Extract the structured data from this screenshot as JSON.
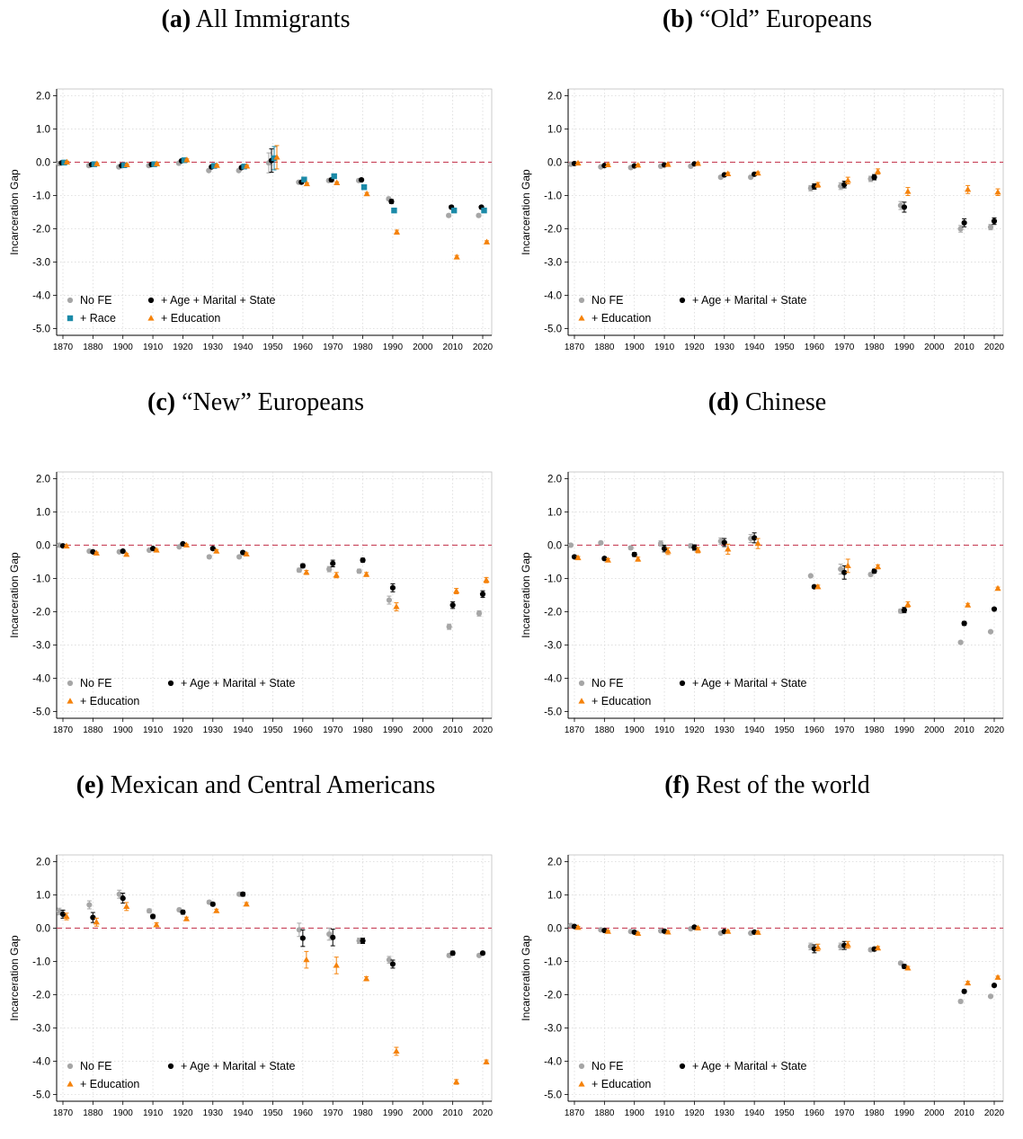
{
  "colors": {
    "nofe": "#a6a6a6",
    "fe": "#000000",
    "race": "#1b8aa8",
    "edu": "#f5820a",
    "zero_line": "#c8435a",
    "grid": "#d9d9d9"
  },
  "chart_data": [
    {
      "type": "scatter",
      "letter": "(a)",
      "title": "All Immigrants",
      "ylabel": "Incarceration Gap",
      "xticks": [
        "1870",
        "1880",
        "1900",
        "1910",
        "1920",
        "1930",
        "1940",
        "1950",
        "1960",
        "1970",
        "1980",
        "1990",
        "2000",
        "2010",
        "2020"
      ],
      "yticks": [
        "2.0",
        "1.0",
        "0.0",
        "-1.0",
        "-2.0",
        "-3.0",
        "-4.0",
        "-5.0"
      ],
      "ylim": [
        -5.2,
        2.2
      ],
      "legend": [
        "No FE",
        "+ Age + Marital + State",
        "+ Race",
        "+ Education"
      ],
      "series": [
        {
          "name": "No FE",
          "marker": "circle",
          "values": [
            -0.04,
            -0.1,
            -0.14,
            -0.1,
            -0.03,
            -0.25,
            -0.25,
            -0.02,
            -0.6,
            -0.55,
            -0.55,
            -1.1,
            null,
            -1.6,
            -1.6
          ],
          "err": [
            0.03,
            0.03,
            0.03,
            0.03,
            0.03,
            0.03,
            0.03,
            0.3,
            0.03,
            0.03,
            0.03,
            0.05,
            null,
            0.04,
            0.04
          ]
        },
        {
          "name": "+ Age + Marital + State",
          "marker": "circle",
          "values": [
            -0.02,
            -0.07,
            -0.1,
            -0.07,
            0.04,
            -0.14,
            -0.16,
            0.05,
            -0.6,
            -0.53,
            -0.53,
            -1.18,
            null,
            -1.35,
            -1.35
          ],
          "err": [
            0.03,
            0.03,
            0.03,
            0.03,
            0.03,
            0.03,
            0.03,
            0.35,
            0.04,
            0.05,
            0.04,
            0.06,
            null,
            0.05,
            0.04
          ]
        },
        {
          "name": "+ Race",
          "marker": "square",
          "values": [
            -0.01,
            -0.06,
            -0.09,
            -0.06,
            0.06,
            -0.11,
            -0.13,
            0.12,
            -0.52,
            -0.42,
            -0.75,
            -1.45,
            null,
            -1.45,
            -1.45
          ],
          "err": [
            0.03,
            0.03,
            0.03,
            0.03,
            0.03,
            0.03,
            0.03,
            0.35,
            0.03,
            0.03,
            0.03,
            0.05,
            null,
            0.04,
            0.04
          ]
        },
        {
          "name": "+ Education",
          "marker": "triangle",
          "values": [
            0.0,
            -0.05,
            -0.08,
            -0.05,
            0.07,
            -0.1,
            -0.12,
            0.15,
            -0.65,
            -0.62,
            -0.95,
            -2.1,
            null,
            -2.85,
            -2.4
          ],
          "err": [
            0.03,
            0.03,
            0.03,
            0.03,
            0.03,
            0.03,
            0.03,
            0.35,
            0.03,
            0.03,
            0.04,
            0.06,
            null,
            0.05,
            0.04
          ]
        }
      ]
    },
    {
      "type": "scatter",
      "letter": "(b)",
      "title": "“Old” Europeans",
      "ylabel": "Incarceration Gap",
      "xticks": [
        "1870",
        "1880",
        "1900",
        "1910",
        "1920",
        "1930",
        "1940",
        "1950",
        "1960",
        "1970",
        "1980",
        "1990",
        "2000",
        "2010",
        "2020"
      ],
      "yticks": [
        "2.0",
        "1.0",
        "0.0",
        "-1.0",
        "-2.0",
        "-3.0",
        "-4.0",
        "-5.0"
      ],
      "ylim": [
        -5.2,
        2.2
      ],
      "legend": [
        "No FE",
        "+ Age + Marital + State",
        "+ Education"
      ],
      "series": [
        {
          "name": "No FE",
          "marker": "circle",
          "values": [
            -0.06,
            -0.14,
            -0.16,
            -0.12,
            -0.12,
            -0.45,
            -0.45,
            null,
            -0.78,
            -0.72,
            -0.5,
            -1.3,
            null,
            -2.0,
            -1.95
          ],
          "err": [
            0.03,
            0.03,
            0.03,
            0.03,
            0.03,
            0.04,
            0.04,
            null,
            0.08,
            0.1,
            0.08,
            0.12,
            null,
            0.1,
            0.08
          ]
        },
        {
          "name": "+ Age + Marital + State",
          "marker": "circle",
          "values": [
            -0.04,
            -0.1,
            -0.11,
            -0.08,
            -0.05,
            -0.38,
            -0.36,
            null,
            -0.73,
            -0.67,
            -0.45,
            -1.35,
            null,
            -1.82,
            -1.77
          ],
          "err": [
            0.03,
            0.03,
            0.03,
            0.03,
            0.03,
            0.04,
            0.04,
            null,
            0.08,
            0.1,
            0.08,
            0.15,
            null,
            0.12,
            0.1
          ]
        },
        {
          "name": "+ Education",
          "marker": "triangle",
          "values": [
            -0.03,
            -0.08,
            -0.09,
            -0.07,
            -0.04,
            -0.35,
            -0.33,
            null,
            -0.68,
            -0.55,
            -0.28,
            -0.88,
            null,
            -0.82,
            -0.9
          ],
          "err": [
            0.03,
            0.03,
            0.03,
            0.03,
            0.03,
            0.04,
            0.04,
            null,
            0.07,
            0.1,
            0.08,
            0.12,
            null,
            0.12,
            0.1
          ]
        }
      ]
    },
    {
      "type": "scatter",
      "letter": "(c)",
      "title": "“New” Europeans",
      "ylabel": "Incarceration Gap",
      "xticks": [
        "1870",
        "1880",
        "1900",
        "1910",
        "1920",
        "1930",
        "1940",
        "1950",
        "1960",
        "1970",
        "1980",
        "1990",
        "2000",
        "2010",
        "2020"
      ],
      "yticks": [
        "2.0",
        "1.0",
        "0.0",
        "-1.0",
        "-2.0",
        "-3.0",
        "-4.0",
        "-5.0"
      ],
      "ylim": [
        -5.2,
        2.2
      ],
      "legend": [
        "No FE",
        "+ Age + Marital + State",
        "+ Education"
      ],
      "series": [
        {
          "name": "No FE",
          "marker": "circle",
          "values": [
            0.0,
            -0.18,
            -0.2,
            -0.15,
            -0.05,
            -0.35,
            -0.35,
            null,
            -0.75,
            -0.72,
            -0.78,
            -1.65,
            null,
            -2.45,
            -2.05
          ],
          "err": [
            0.03,
            0.03,
            0.03,
            0.03,
            0.03,
            0.04,
            0.04,
            null,
            0.06,
            0.08,
            0.06,
            0.12,
            null,
            0.08,
            0.08
          ]
        },
        {
          "name": "+ Age + Marital + State",
          "marker": "circle",
          "values": [
            -0.02,
            -0.2,
            -0.18,
            -0.1,
            0.04,
            -0.1,
            -0.22,
            null,
            -0.62,
            -0.55,
            -0.45,
            -1.28,
            null,
            -1.8,
            -1.47
          ],
          "err": [
            0.03,
            0.03,
            0.03,
            0.03,
            0.03,
            0.04,
            0.04,
            null,
            0.06,
            0.1,
            0.06,
            0.12,
            null,
            0.1,
            0.1
          ]
        },
        {
          "name": "+ Education",
          "marker": "triangle",
          "values": [
            -0.03,
            -0.24,
            -0.28,
            -0.15,
            0.0,
            -0.18,
            -0.27,
            null,
            -0.82,
            -0.9,
            -0.88,
            -1.85,
            null,
            -1.38,
            -1.05
          ],
          "err": [
            0.03,
            0.03,
            0.03,
            0.03,
            0.03,
            0.04,
            0.04,
            null,
            0.06,
            0.08,
            0.06,
            0.12,
            null,
            0.08,
            0.08
          ]
        }
      ]
    },
    {
      "type": "scatter",
      "letter": "(d)",
      "title": "Chinese",
      "ylabel": "Incarceration Gap",
      "xticks": [
        "1870",
        "1880",
        "1900",
        "1910",
        "1920",
        "1930",
        "1940",
        "1950",
        "1960",
        "1970",
        "1980",
        "1990",
        "2000",
        "2010",
        "2020"
      ],
      "yticks": [
        "2.0",
        "1.0",
        "0.0",
        "-1.0",
        "-2.0",
        "-3.0",
        "-4.0",
        "-5.0"
      ],
      "ylim": [
        -5.2,
        2.2
      ],
      "legend": [
        "No FE",
        "+ Age + Marital + State",
        "+ Education"
      ],
      "series": [
        {
          "name": "No FE",
          "marker": "circle",
          "values": [
            0.0,
            0.07,
            -0.08,
            0.05,
            -0.02,
            0.12,
            0.2,
            null,
            -0.92,
            -0.72,
            -0.88,
            -1.98,
            null,
            -2.92,
            -2.6
          ],
          "err": [
            0.03,
            0.04,
            0.05,
            0.08,
            0.06,
            0.1,
            0.12,
            null,
            0.03,
            0.15,
            0.05,
            0.06,
            null,
            0.04,
            0.03
          ]
        },
        {
          "name": "+ Age + Marital + State",
          "marker": "circle",
          "values": [
            -0.35,
            -0.4,
            -0.28,
            -0.1,
            -0.07,
            0.08,
            0.22,
            null,
            -1.25,
            -0.82,
            -0.78,
            -1.95,
            null,
            -2.35,
            -1.92
          ],
          "err": [
            0.04,
            0.05,
            0.06,
            0.1,
            0.08,
            0.12,
            0.15,
            null,
            0.05,
            0.2,
            0.06,
            0.08,
            null,
            0.06,
            0.04
          ]
        },
        {
          "name": "+ Education",
          "marker": "triangle",
          "values": [
            -0.38,
            -0.45,
            -0.42,
            -0.18,
            -0.15,
            -0.12,
            0.05,
            null,
            -1.25,
            -0.62,
            -0.65,
            -1.78,
            null,
            -1.8,
            -1.3
          ],
          "err": [
            0.04,
            0.05,
            0.06,
            0.1,
            0.08,
            0.15,
            0.15,
            null,
            0.05,
            0.2,
            0.06,
            0.08,
            null,
            0.05,
            0.04
          ]
        }
      ]
    },
    {
      "type": "scatter",
      "letter": "(e)",
      "title": "Mexican and Central Americans",
      "ylabel": "Incarceration Gap",
      "xticks": [
        "1870",
        "1880",
        "1900",
        "1910",
        "1920",
        "1930",
        "1940",
        "1950",
        "1960",
        "1970",
        "1980",
        "1990",
        "2000",
        "2010",
        "2020"
      ],
      "yticks": [
        "2.0",
        "1.0",
        "0.0",
        "-1.0",
        "-2.0",
        "-3.0",
        "-4.0",
        "-5.0"
      ],
      "ylim": [
        -5.2,
        2.2
      ],
      "legend": [
        "No FE",
        "+ Age + Marital + State",
        "+ Education"
      ],
      "series": [
        {
          "name": "No FE",
          "marker": "circle",
          "values": [
            0.5,
            0.7,
            1.02,
            0.52,
            0.55,
            0.78,
            1.02,
            null,
            -0.05,
            -0.18,
            -0.38,
            -0.95,
            null,
            -0.82,
            -0.82
          ],
          "err": [
            0.1,
            0.12,
            0.12,
            0.06,
            0.05,
            0.05,
            0.05,
            null,
            0.2,
            0.18,
            0.08,
            0.1,
            null,
            0.05,
            0.04
          ]
        },
        {
          "name": "+ Age + Marital + State",
          "marker": "circle",
          "values": [
            0.42,
            0.32,
            0.9,
            0.35,
            0.48,
            0.72,
            1.02,
            null,
            -0.3,
            -0.28,
            -0.38,
            -1.08,
            null,
            -0.75,
            -0.75
          ],
          "err": [
            0.12,
            0.15,
            0.15,
            0.06,
            0.06,
            0.05,
            0.06,
            null,
            0.25,
            0.25,
            0.08,
            0.12,
            null,
            0.06,
            0.05
          ]
        },
        {
          "name": "+ Education",
          "marker": "triangle",
          "values": [
            0.35,
            0.18,
            0.65,
            0.1,
            0.28,
            0.52,
            0.72,
            null,
            -0.95,
            -1.12,
            -1.52,
            -3.7,
            null,
            -4.62,
            -4.02
          ],
          "err": [
            0.1,
            0.12,
            0.12,
            0.06,
            0.05,
            0.05,
            0.05,
            null,
            0.25,
            0.25,
            0.06,
            0.12,
            null,
            0.07,
            0.06
          ]
        }
      ]
    },
    {
      "type": "scatter",
      "letter": "(f)",
      "title": "Rest of the world",
      "ylabel": "Incarceration Gap",
      "xticks": [
        "1870",
        "1880",
        "1900",
        "1910",
        "1920",
        "1930",
        "1940",
        "1950",
        "1960",
        "1970",
        "1980",
        "1990",
        "2000",
        "2010",
        "2020"
      ],
      "yticks": [
        "2.0",
        "1.0",
        "0.0",
        "-1.0",
        "-2.0",
        "-3.0",
        "-4.0",
        "-5.0"
      ],
      "ylim": [
        -5.2,
        2.2
      ],
      "legend": [
        "No FE",
        "+ Age + Marital + State",
        "+ Education"
      ],
      "series": [
        {
          "name": "No FE",
          "marker": "circle",
          "values": [
            0.08,
            -0.05,
            -0.1,
            -0.08,
            -0.02,
            -0.15,
            -0.15,
            null,
            -0.55,
            -0.55,
            -0.65,
            -1.05,
            null,
            -2.2,
            -2.05
          ],
          "err": [
            0.03,
            0.03,
            0.03,
            0.03,
            0.03,
            0.03,
            0.03,
            null,
            0.1,
            0.1,
            0.05,
            0.05,
            null,
            0.05,
            0.04
          ]
        },
        {
          "name": "+ Age + Marital + State",
          "marker": "circle",
          "values": [
            0.05,
            -0.07,
            -0.12,
            -0.09,
            0.03,
            -0.1,
            -0.12,
            null,
            -0.62,
            -0.52,
            -0.63,
            -1.15,
            null,
            -1.9,
            -1.72
          ],
          "err": [
            0.03,
            0.03,
            0.03,
            0.03,
            0.03,
            0.03,
            0.03,
            null,
            0.12,
            0.12,
            0.05,
            0.06,
            null,
            0.05,
            0.04
          ]
        },
        {
          "name": "+ Education",
          "marker": "triangle",
          "values": [
            0.02,
            -0.1,
            -0.16,
            -0.12,
            0.0,
            -0.1,
            -0.13,
            null,
            -0.58,
            -0.5,
            -0.6,
            -1.2,
            null,
            -1.65,
            -1.48
          ],
          "err": [
            0.03,
            0.03,
            0.03,
            0.03,
            0.03,
            0.03,
            0.03,
            null,
            0.1,
            0.1,
            0.05,
            0.05,
            null,
            0.05,
            0.04
          ]
        }
      ]
    }
  ]
}
